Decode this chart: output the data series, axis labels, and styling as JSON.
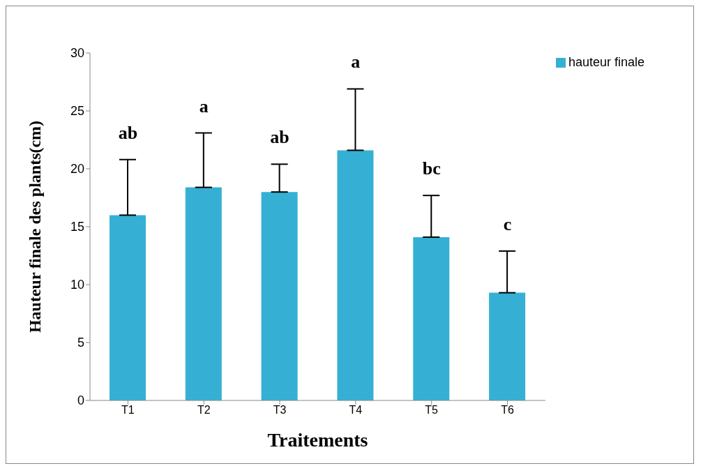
{
  "chart_data": {
    "type": "bar",
    "xlabel": "Traitements",
    "ylabel": "Hauteur finale des plants(cm)",
    "categories": [
      "T1",
      "T2",
      "T3",
      "T4",
      "T5",
      "T6"
    ],
    "series": [
      {
        "name": "hauteur finale",
        "color": "#35b0d4",
        "values": [
          16.0,
          18.4,
          18.0,
          21.6,
          14.1,
          9.3
        ],
        "errors": [
          [
            16.0,
            20.8
          ],
          [
            18.4,
            23.1
          ],
          [
            18.0,
            20.4
          ],
          [
            21.6,
            26.9
          ],
          [
            14.1,
            17.7
          ],
          [
            9.3,
            12.9
          ]
        ]
      }
    ],
    "ylim": [
      0,
      30
    ],
    "yticks": [
      0,
      5,
      10,
      15,
      20,
      25,
      30
    ],
    "grid": false,
    "legend": "top right",
    "annotations": [
      "ab",
      "a",
      "ab",
      "a",
      "bc",
      "c"
    ]
  }
}
